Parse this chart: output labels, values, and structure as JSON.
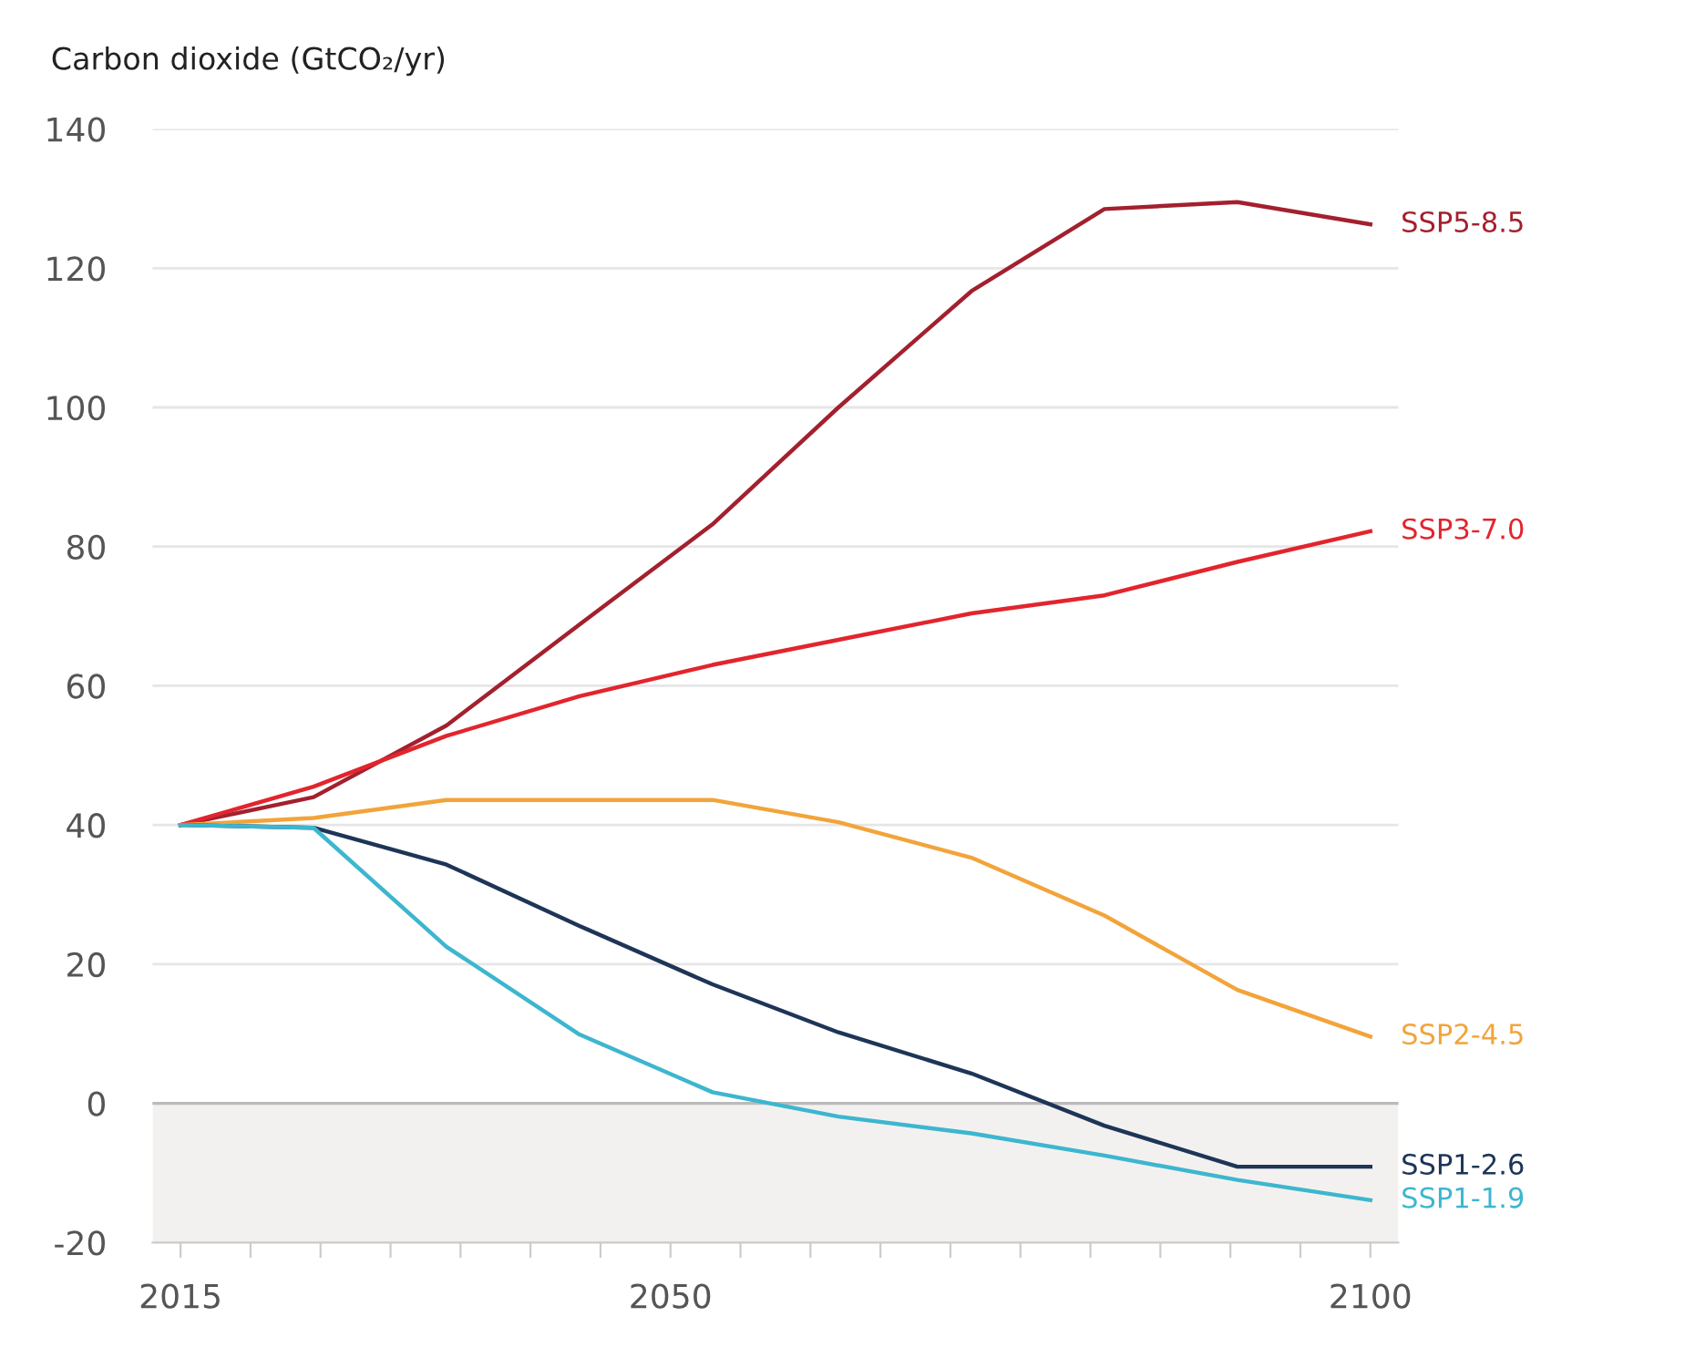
{
  "chart_data": {
    "type": "line",
    "ylabel": "Carbon dioxide (GtCO₂/yr)",
    "x": [
      2015,
      2024.5,
      2034,
      2043.5,
      2053,
      2062,
      2071.5,
      2081,
      2090.5,
      2100
    ],
    "series": [
      {
        "name": "SSP5-8.5",
        "color": "#a3202e",
        "values": [
          40,
          44,
          54.3,
          68.8,
          83.2,
          100,
          116.7,
          128.5,
          129.5,
          126.3
        ]
      },
      {
        "name": "SSP3-7.0",
        "color": "#e2252d",
        "values": [
          40,
          45.5,
          52.8,
          58.5,
          63,
          66.6,
          70.4,
          73,
          77.8,
          82.2
        ]
      },
      {
        "name": "SSP2-4.5",
        "color": "#f2a43a",
        "values": [
          40,
          41,
          43.6,
          43.6,
          43.6,
          40.4,
          35.3,
          27,
          16.3,
          9.6
        ]
      },
      {
        "name": "SSP1-2.6",
        "color": "#1e3557",
        "values": [
          40,
          39.6,
          34.3,
          25.5,
          17.1,
          10.2,
          4.3,
          -3.2,
          -9.1,
          -9.1
        ]
      },
      {
        "name": "SSP1-1.9",
        "color": "#3db6cf",
        "values": [
          40,
          39.6,
          22.5,
          9.9,
          1.6,
          -1.9,
          -4.3,
          -7.5,
          -11,
          -13.9
        ]
      }
    ],
    "xlim": [
      2013,
      2102
    ],
    "xticks": [
      2015,
      {
        "value": 2020,
        "label": null
      },
      {
        "value": 2025,
        "label": null
      },
      {
        "value": 2030,
        "label": null
      },
      {
        "value": 2035,
        "label": null
      },
      {
        "value": 2040,
        "label": null
      },
      {
        "value": 2045,
        "label": null
      },
      2050,
      {
        "value": 2055,
        "label": null
      },
      {
        "value": 2060,
        "label": null
      },
      {
        "value": 2065,
        "label": null
      },
      {
        "value": 2070,
        "label": null
      },
      {
        "value": 2075,
        "label": null
      },
      {
        "value": 2080,
        "label": null
      },
      {
        "value": 2085,
        "label": null
      },
      {
        "value": 2090,
        "label": null
      },
      {
        "value": 2095,
        "label": null
      },
      2100
    ],
    "ylim": [
      -20,
      140
    ],
    "yticks": [
      -20,
      0,
      20,
      40,
      60,
      80,
      100,
      120,
      140
    ],
    "bands": [
      {
        "axis": "y",
        "from": -20,
        "to": 0,
        "color": "#f3f1ef"
      }
    ],
    "ref_lines": [
      {
        "axis": "y",
        "value": 0,
        "color": "#bbbbbb"
      }
    ],
    "grid": "y",
    "legend": false,
    "marker": "none",
    "line_style": "solid"
  }
}
